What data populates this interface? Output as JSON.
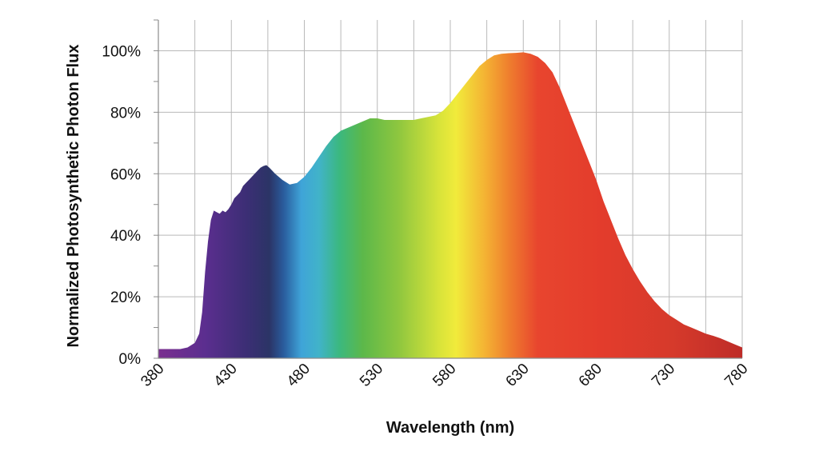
{
  "chart_data": {
    "type": "area",
    "xlabel": "Wavelength (nm)",
    "ylabel": "Normalized Photosynthetic Photon Flux",
    "xlim": [
      380,
      780
    ],
    "ylim": [
      0,
      110
    ],
    "x_ticks": [
      "380",
      "430",
      "480",
      "530",
      "580",
      "630",
      "680",
      "730",
      "780"
    ],
    "y_ticks": [
      "0%",
      "20%",
      "40%",
      "60%",
      "80%",
      "100%"
    ],
    "grid": true,
    "fill": "visible-spectrum gradient (violet to deep red)",
    "x": [
      380,
      390,
      395,
      400,
      405,
      408,
      410,
      412,
      414,
      416,
      418,
      420,
      422,
      424,
      426,
      428,
      430,
      432,
      434,
      436,
      438,
      440,
      442,
      444,
      446,
      448,
      450,
      452,
      454,
      456,
      458,
      460,
      465,
      470,
      475,
      480,
      485,
      490,
      495,
      500,
      505,
      510,
      515,
      520,
      525,
      530,
      535,
      540,
      545,
      550,
      555,
      560,
      565,
      570,
      575,
      580,
      585,
      590,
      595,
      600,
      605,
      610,
      615,
      620,
      625,
      630,
      635,
      640,
      645,
      650,
      655,
      660,
      665,
      670,
      675,
      680,
      685,
      690,
      695,
      700,
      705,
      710,
      715,
      720,
      725,
      730,
      735,
      740,
      745,
      750,
      755,
      760,
      765,
      770,
      775,
      780
    ],
    "values": [
      3,
      3,
      3,
      3.5,
      5,
      8,
      15,
      28,
      38,
      45,
      48,
      47.5,
      47,
      48,
      47.5,
      48.5,
      50,
      52,
      53,
      54,
      56,
      57,
      58,
      59,
      60,
      61,
      62,
      62.5,
      62.8,
      62,
      61,
      60,
      58,
      56.5,
      57,
      59,
      62,
      65.5,
      69,
      72,
      74,
      75,
      76,
      77,
      78,
      78,
      77.5,
      77.5,
      77.5,
      77.5,
      77.5,
      78,
      78.5,
      79,
      80.5,
      83,
      86,
      89,
      92,
      95,
      97,
      98.5,
      99,
      99.2,
      99.3,
      99.5,
      99,
      98,
      96,
      93,
      88,
      82,
      76,
      70,
      64,
      58,
      51,
      45,
      39,
      33.5,
      29,
      25,
      21.5,
      18.5,
      16,
      14,
      12.5,
      11,
      10,
      9,
      8,
      7.3,
      6.5,
      5.5,
      4.5,
      3.5
    ]
  }
}
